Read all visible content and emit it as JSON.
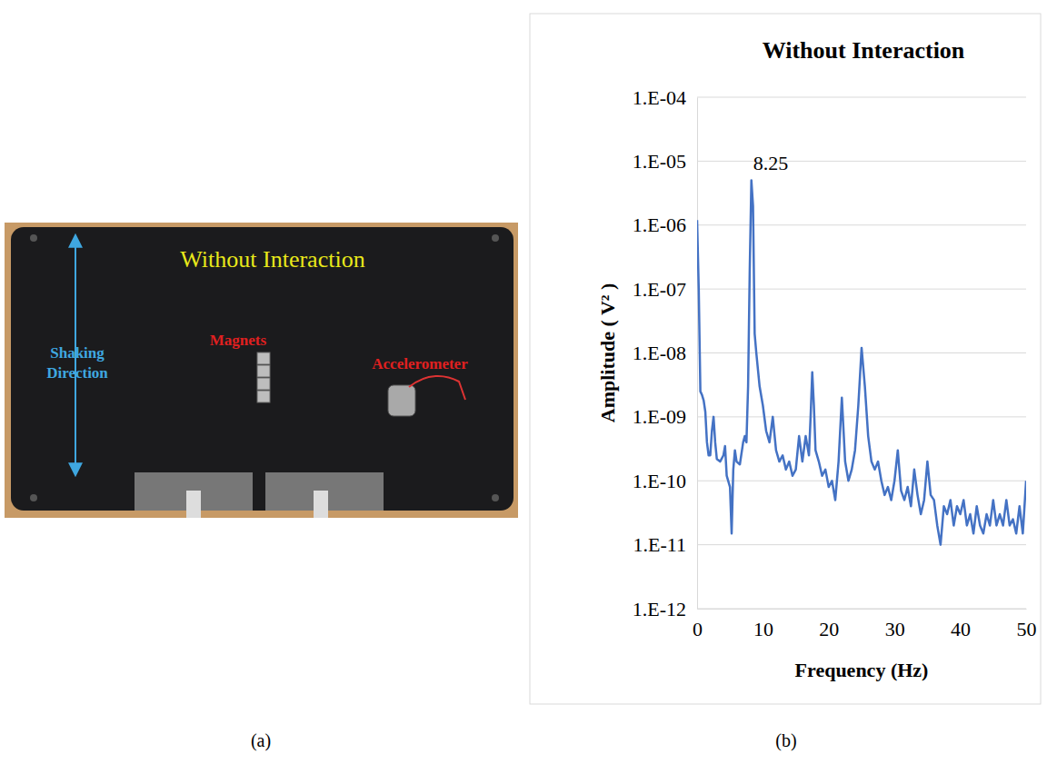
{
  "chart_data": {
    "type": "line",
    "title": "Without Interaction",
    "x_label": "Frequency (Hz)",
    "y_label": "Amplitude ( V² )",
    "log": "y",
    "grid": true,
    "color": "#4472c4",
    "xlim": [
      0,
      50
    ],
    "xticks": [
      0,
      10,
      20,
      30,
      40,
      50
    ],
    "ylim": [
      1e-12,
      0.0001
    ],
    "yticks": [
      {
        "value": 1e-12,
        "label": "1.E-12"
      },
      {
        "value": 1e-11,
        "label": "1.E-11"
      },
      {
        "value": 1e-10,
        "label": "1.E-10"
      },
      {
        "value": 1e-09,
        "label": "1.E-09"
      },
      {
        "value": 1e-08,
        "label": "1.E-08"
      },
      {
        "value": 1e-07,
        "label": "1.E-07"
      },
      {
        "value": 1e-06,
        "label": "1.E-06"
      },
      {
        "value": 1e-05,
        "label": "1.E-05"
      },
      {
        "value": 0.0001,
        "label": "1.E-04"
      }
    ],
    "annotations": [
      {
        "x": 8.25,
        "y": 5e-06,
        "label": "8.25"
      }
    ],
    "x": [
      0,
      0.25,
      0.5,
      0.75,
      1,
      1.25,
      1.5,
      1.75,
      2,
      2.25,
      2.5,
      2.75,
      3,
      3.5,
      4,
      4.25,
      4.5,
      5,
      5.25,
      5.5,
      5.75,
      6,
      6.5,
      7,
      7.25,
      7.5,
      7.75,
      8,
      8.25,
      8.5,
      8.75,
      9,
      9.5,
      10,
      10.5,
      11,
      11.5,
      12,
      12.5,
      13,
      13.5,
      14,
      14.5,
      15,
      15.5,
      16,
      16.5,
      17,
      17.25,
      17.5,
      17.75,
      18,
      18.5,
      19,
      19.5,
      20,
      20.5,
      21,
      21.5,
      22,
      22.5,
      23,
      23.5,
      24,
      24.5,
      25,
      25.5,
      26,
      26.5,
      27,
      27.5,
      28,
      28.5,
      29,
      29.5,
      30,
      30.5,
      31,
      31.5,
      32,
      32.5,
      33,
      33.5,
      34,
      34.5,
      35,
      35.5,
      36,
      36.5,
      37,
      37.5,
      38,
      38.5,
      39,
      39.5,
      40,
      40.5,
      41,
      41.5,
      42,
      42.5,
      43,
      43.5,
      44,
      44.5,
      45,
      45.5,
      46,
      46.5,
      47,
      47.5,
      48,
      48.5,
      49,
      49.5,
      50
    ],
    "values": [
      1.2e-06,
      1e-07,
      2.5e-09,
      2.2e-09,
      1.8e-09,
      1.2e-09,
      4e-10,
      2.5e-10,
      2.5e-10,
      6e-10,
      1e-09,
      4e-10,
      2.2e-10,
      2e-10,
      2.5e-10,
      3.5e-10,
      1.2e-10,
      8e-11,
      1.5e-11,
      1.5e-10,
      3e-10,
      2e-10,
      1.8e-10,
      4e-10,
      5e-10,
      4e-10,
      3e-09,
      2e-07,
      5e-06,
      2e-06,
      2e-08,
      1e-08,
      3e-09,
      1.5e-09,
      6e-10,
      4e-10,
      1e-09,
      3e-10,
      2e-10,
      2.5e-10,
      1.5e-10,
      2e-10,
      1.2e-10,
      1.5e-10,
      5e-10,
      2e-10,
      5e-10,
      2.5e-10,
      1e-09,
      5e-09,
      1.5e-09,
      3e-10,
      2e-10,
      1.2e-10,
      1.5e-10,
      8e-11,
      1e-10,
      5e-11,
      2e-10,
      2e-09,
      2e-10,
      1e-10,
      1.5e-10,
      3e-10,
      1.5e-09,
      1.2e-08,
      3e-09,
      5e-10,
      2e-10,
      1.5e-10,
      2e-10,
      1e-10,
      6e-11,
      8e-11,
      5e-11,
      1e-10,
      3e-10,
      7e-11,
      5e-11,
      8e-11,
      4e-11,
      1.5e-10,
      6e-11,
      3e-11,
      5e-11,
      2e-10,
      6e-11,
      5e-11,
      2e-11,
      1e-11,
      4e-11,
      3e-11,
      5e-11,
      2e-11,
      4e-11,
      3e-11,
      5e-11,
      2e-11,
      3e-11,
      1.5e-11,
      4e-11,
      2e-11,
      1.5e-11,
      3e-11,
      2e-11,
      5e-11,
      2e-11,
      3e-11,
      2e-11,
      5e-11,
      2e-11,
      2.5e-11,
      1.5e-11,
      4e-11,
      1.5e-11,
      1e-10
    ]
  },
  "photo": {
    "title": "Without Interaction",
    "labels": [
      "Shaking Direction",
      "Magnets",
      "Accelerometer"
    ]
  },
  "panel_labels": [
    "(a)",
    "(b)"
  ]
}
